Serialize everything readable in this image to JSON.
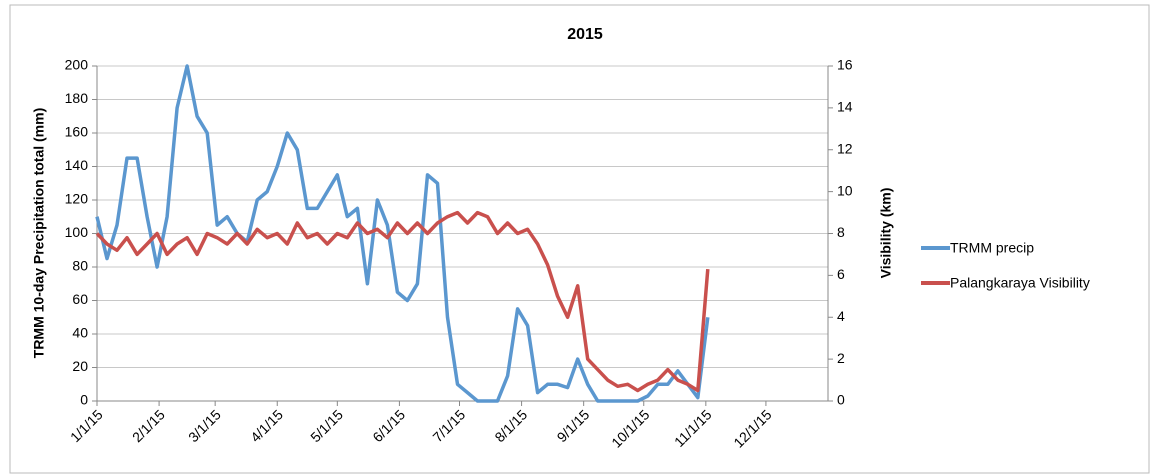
{
  "chart_data": {
    "type": "line",
    "title": "2015",
    "y_label": "TRMM 10-day Precipitation total (mm)",
    "y2_label": "Visibility (km)",
    "x": [
      "2015-01-01",
      "2015-01-06",
      "2015-01-11",
      "2015-01-16",
      "2015-01-21",
      "2015-01-26",
      "2015-01-31",
      "2015-02-05",
      "2015-02-10",
      "2015-02-15",
      "2015-02-20",
      "2015-02-25",
      "2015-03-02",
      "2015-03-07",
      "2015-03-12",
      "2015-03-17",
      "2015-03-22",
      "2015-03-27",
      "2015-04-01",
      "2015-04-06",
      "2015-04-11",
      "2015-04-16",
      "2015-04-21",
      "2015-04-26",
      "2015-05-01",
      "2015-05-06",
      "2015-05-11",
      "2015-05-16",
      "2015-05-21",
      "2015-05-26",
      "2015-05-31",
      "2015-06-05",
      "2015-06-10",
      "2015-06-15",
      "2015-06-20",
      "2015-06-25",
      "2015-06-30",
      "2015-07-05",
      "2015-07-10",
      "2015-07-15",
      "2015-07-20",
      "2015-07-25",
      "2015-07-30",
      "2015-08-04",
      "2015-08-09",
      "2015-08-14",
      "2015-08-19",
      "2015-08-24",
      "2015-08-29",
      "2015-09-03",
      "2015-09-08",
      "2015-09-13",
      "2015-09-18",
      "2015-09-23",
      "2015-09-28",
      "2015-10-03",
      "2015-10-08",
      "2015-10-13",
      "2015-10-18",
      "2015-10-23",
      "2015-10-28",
      "2015-11-02"
    ],
    "series": [
      {
        "name": "TRMM precip",
        "color": "#5b97cf",
        "values": [
          110,
          85,
          105,
          145,
          145,
          110,
          80,
          110,
          175,
          200,
          170,
          160,
          105,
          110,
          100,
          95,
          120,
          125,
          140,
          160,
          150,
          115,
          115,
          125,
          135,
          110,
          115,
          70,
          120,
          105,
          65,
          60,
          70,
          135,
          130,
          50,
          10,
          5,
          0,
          0,
          0,
          15,
          55,
          45,
          5,
          10,
          10,
          8,
          25,
          10,
          0,
          0,
          0,
          0,
          0,
          3,
          10,
          10,
          18,
          10,
          2,
          50
        ]
      },
      {
        "name": "Palangkaraya Visibility",
        "color": "#c9504d",
        "axis": "y2",
        "values": [
          8,
          7.5,
          7.2,
          7.8,
          7,
          7.5,
          8,
          7,
          7.5,
          7.8,
          7,
          8,
          7.8,
          7.5,
          8,
          7.5,
          8.2,
          7.8,
          8,
          7.5,
          8.5,
          7.8,
          8,
          7.5,
          8,
          7.8,
          8.5,
          8,
          8.2,
          7.8,
          8.5,
          8,
          8.5,
          8,
          8.5,
          8.8,
          9,
          8.5,
          9,
          8.8,
          8,
          8.5,
          8,
          8.2,
          7.5,
          6.5,
          5,
          4,
          5.5,
          2,
          1.5,
          1,
          0.7,
          0.8,
          0.5,
          0.8,
          1,
          1.5,
          1,
          0.8,
          0.5,
          6.3
        ]
      }
    ],
    "xlim": [
      "2015-01-01",
      "2016-01-01"
    ],
    "xticks": [
      {
        "value": "2015-01-01",
        "label": "1/1/15"
      },
      {
        "value": "2015-02-01",
        "label": "2/1/15"
      },
      {
        "value": "2015-03-01",
        "label": "3/1/15"
      },
      {
        "value": "2015-04-01",
        "label": "4/1/15"
      },
      {
        "value": "2015-05-01",
        "label": "5/1/15"
      },
      {
        "value": "2015-06-01",
        "label": "6/1/15"
      },
      {
        "value": "2015-07-01",
        "label": "7/1/15"
      },
      {
        "value": "2015-08-01",
        "label": "8/1/15"
      },
      {
        "value": "2015-09-01",
        "label": "9/1/15"
      },
      {
        "value": "2015-10-01",
        "label": "10/1/15"
      },
      {
        "value": "2015-11-01",
        "label": "11/1/15"
      },
      {
        "value": "2015-12-01",
        "label": "12/1/15"
      }
    ],
    "ylim": [
      0,
      200
    ],
    "yticks": [
      0,
      20,
      40,
      60,
      80,
      100,
      120,
      140,
      160,
      180,
      200
    ],
    "y2lim": [
      0,
      16
    ],
    "y2ticks": [
      0,
      2,
      4,
      6,
      8,
      10,
      12,
      14,
      16
    ],
    "grid": true,
    "legend": "right"
  }
}
